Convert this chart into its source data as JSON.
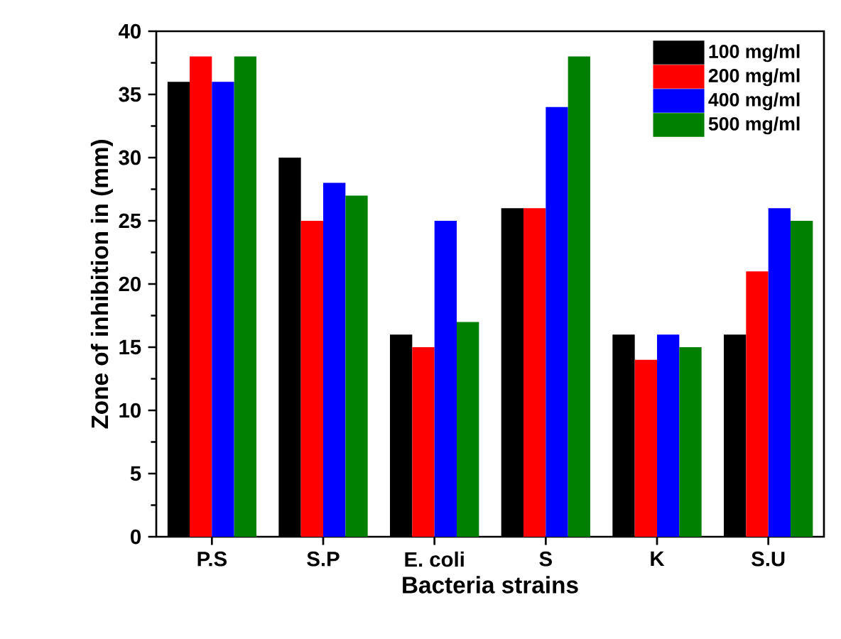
{
  "chart_data": {
    "type": "bar",
    "xlabel": "Bacteria strains",
    "ylabel": "Zone of inhibition in (mm)",
    "categories": [
      "P.S",
      "S.P",
      "E. coli",
      "S",
      "K",
      "S.U"
    ],
    "series": [
      {
        "name": "100 mg/ml",
        "color": "#000000",
        "values": [
          36,
          30,
          16,
          26,
          16,
          16
        ]
      },
      {
        "name": "200 mg/ml",
        "color": "#ff0000",
        "values": [
          38,
          25,
          15,
          26,
          14,
          21
        ]
      },
      {
        "name": "400 mg/ml",
        "color": "#0000ff",
        "values": [
          36,
          28,
          25,
          34,
          16,
          26
        ]
      },
      {
        "name": "500 mg/ml",
        "color": "#008000",
        "values": [
          38,
          27,
          17,
          38,
          15,
          25
        ]
      }
    ],
    "ylim": [
      0,
      40
    ],
    "yticks": [
      0,
      5,
      10,
      15,
      20,
      25,
      30,
      35,
      40
    ],
    "legend": "top right",
    "grid": false
  }
}
